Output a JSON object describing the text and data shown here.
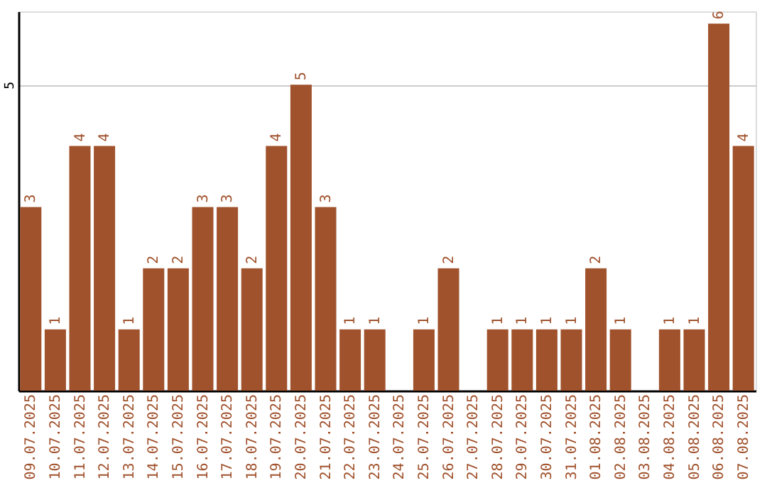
{
  "chart_data": {
    "type": "bar",
    "categories": [
      "09.07.2025",
      "10.07.2025",
      "11.07.2025",
      "12.07.2025",
      "13.07.2025",
      "14.07.2025",
      "15.07.2025",
      "16.07.2025",
      "17.07.2025",
      "18.07.2025",
      "19.07.2025",
      "20.07.2025",
      "21.07.2025",
      "22.07.2025",
      "23.07.2025",
      "24.07.2025",
      "25.07.2025",
      "26.07.2025",
      "27.07.2025",
      "28.07.2025",
      "29.07.2025",
      "30.07.2025",
      "31.07.2025",
      "01.08.2025",
      "02.08.2025",
      "03.08.2025",
      "04.08.2025",
      "05.08.2025",
      "06.08.2025",
      "07.08.2025"
    ],
    "values": [
      3,
      1,
      4,
      4,
      1,
      2,
      2,
      3,
      3,
      2,
      4,
      5,
      3,
      1,
      1,
      null,
      1,
      2,
      null,
      1,
      1,
      1,
      1,
      2,
      1,
      null,
      1,
      1,
      6,
      4
    ],
    "color": "#a0522d",
    "ylim": [
      0,
      6.2
    ],
    "yticks": [
      5
    ],
    "grid": "y",
    "data_labels": true
  }
}
